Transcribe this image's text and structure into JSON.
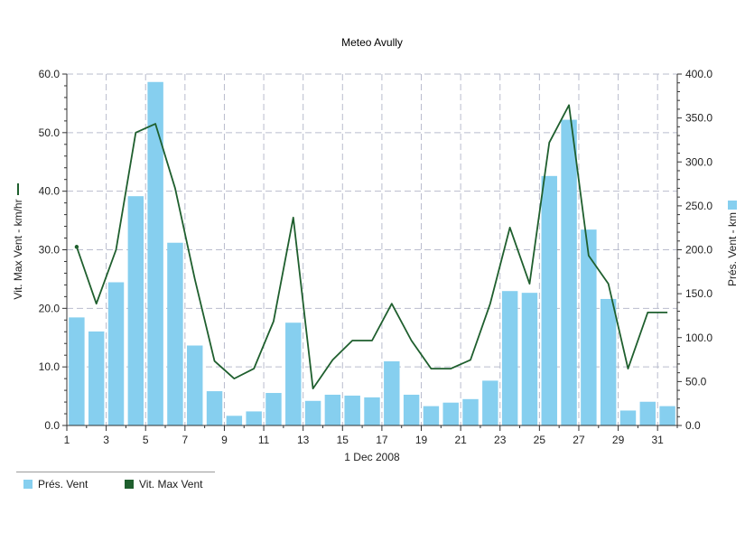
{
  "chart_data": {
    "type": "bar+line",
    "title": "Meteo  Avully",
    "xlabel": "1 Dec 2008",
    "ylabel_left": "Vit. Max Vent - km/hr",
    "ylabel_right": "Prés. Vent - km",
    "x": [
      1,
      2,
      3,
      4,
      5,
      6,
      7,
      8,
      9,
      10,
      11,
      12,
      13,
      14,
      15,
      16,
      17,
      18,
      19,
      20,
      21,
      22,
      23,
      24,
      25,
      26,
      27,
      28,
      29,
      30,
      31
    ],
    "x_tick_labels": [
      "1",
      "3",
      "5",
      "7",
      "9",
      "11",
      "13",
      "15",
      "17",
      "19",
      "21",
      "23",
      "25",
      "27",
      "29",
      "31"
    ],
    "xlim": [
      1,
      32
    ],
    "ylim_left": [
      0,
      60
    ],
    "ylim_right": [
      0,
      400
    ],
    "y_left_ticks": [
      "0.0",
      "10.0",
      "20.0",
      "30.0",
      "40.0",
      "50.0",
      "60.0"
    ],
    "y_right_ticks": [
      "0.0",
      "50.0",
      "100.0",
      "150.0",
      "200.0",
      "250.0",
      "300.0",
      "350.0",
      "400.0"
    ],
    "grid": true,
    "series": [
      {
        "name": "Prés. Vent",
        "type": "bar",
        "axis": "right",
        "color": "#86cfef",
        "values": [
          123,
          107,
          163,
          261,
          391,
          208,
          91,
          39,
          11,
          16,
          37,
          117,
          28,
          35,
          34,
          32,
          73,
          35,
          22,
          26,
          30,
          51,
          153,
          151,
          284,
          348,
          223,
          144,
          17,
          27,
          22
        ]
      },
      {
        "name": "Vit. Max Vent",
        "type": "line",
        "axis": "left",
        "color": "#1f5f2e",
        "values": [
          30.5,
          20.8,
          30.0,
          50.0,
          51.5,
          40.5,
          25.0,
          11.0,
          8.0,
          9.7,
          17.8,
          35.5,
          6.3,
          11.2,
          14.5,
          14.5,
          20.8,
          14.5,
          9.7,
          9.7,
          11.2,
          20.8,
          33.8,
          24.2,
          48.3,
          54.7,
          29.0,
          24.2,
          9.7,
          19.3,
          19.3
        ]
      }
    ]
  }
}
